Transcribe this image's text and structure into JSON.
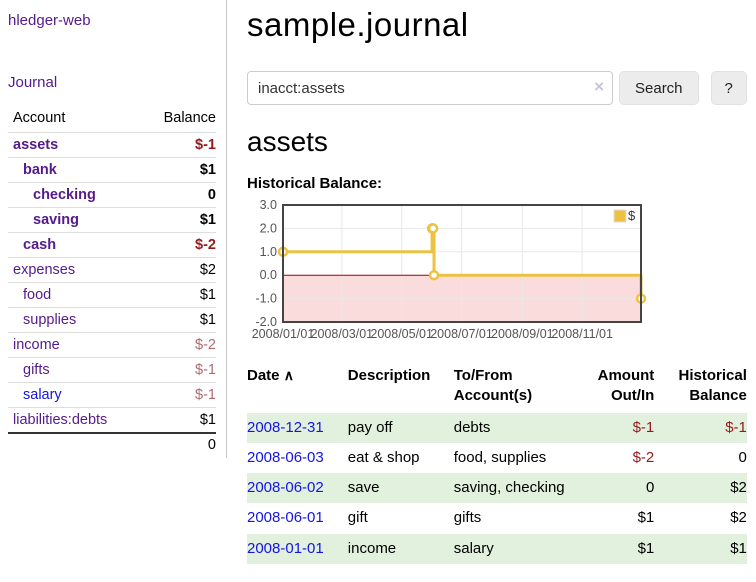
{
  "app": {
    "brand": "hledger-web"
  },
  "sidebar": {
    "journal_link": "Journal",
    "accounts": {
      "col_account": "Account",
      "col_balance": "Balance",
      "rows": [
        {
          "name": "assets",
          "balance": "$-1",
          "depth": 0,
          "bold": true,
          "balance_style": "negative-strong"
        },
        {
          "name": "bank",
          "balance": "$1",
          "depth": 1,
          "bold": true,
          "balance_style": "normal"
        },
        {
          "name": "checking",
          "balance": "0",
          "depth": 2,
          "bold": true,
          "balance_style": "normal"
        },
        {
          "name": "saving",
          "balance": "$1",
          "depth": 2,
          "bold": true,
          "balance_style": "normal"
        },
        {
          "name": "cash",
          "balance": "$-2",
          "depth": 1,
          "bold": true,
          "balance_style": "negative-strong"
        },
        {
          "name": "expenses",
          "balance": "$2",
          "depth": 0,
          "bold": false,
          "balance_style": "normal"
        },
        {
          "name": "food",
          "balance": "$1",
          "depth": 1,
          "bold": false,
          "balance_style": "normal"
        },
        {
          "name": "supplies",
          "balance": "$1",
          "depth": 1,
          "bold": false,
          "balance_style": "normal"
        },
        {
          "name": "income",
          "balance": "$-2",
          "depth": 0,
          "bold": false,
          "balance_style": "negative-soft"
        },
        {
          "name": "gifts",
          "balance": "$-1",
          "depth": 1,
          "bold": false,
          "balance_style": "negative-soft"
        },
        {
          "name": "salary",
          "balance": "$-1",
          "depth": 1,
          "bold": false,
          "balance_style": "negative-soft",
          "link_style": "unvisited"
        },
        {
          "name": "liabilities:debts",
          "balance": "$1",
          "depth": 0,
          "bold": false,
          "balance_style": "normal"
        }
      ],
      "total": "0"
    }
  },
  "main": {
    "title": "sample.journal",
    "search": {
      "value": "inacct:assets",
      "clear_icon": "×",
      "search_button": "Search",
      "help_button": "?"
    },
    "account_heading": "assets",
    "section_label": "Historical Balance:",
    "register": {
      "headers": {
        "date": "Date",
        "sort_indicator": "∧",
        "description": "Description",
        "account": "To/From Account(s)",
        "amount": "Amount Out/In",
        "balance": "Historical Balance"
      },
      "rows": [
        {
          "date": "2008-12-31",
          "description": "pay off",
          "accounts": "debts",
          "amount": "$-1",
          "amount_negative": true,
          "balance": "$-1",
          "balance_negative": true
        },
        {
          "date": "2008-06-03",
          "description": "eat & shop",
          "accounts": "food, supplies",
          "amount": "$-2",
          "amount_negative": true,
          "balance": "0",
          "balance_negative": false
        },
        {
          "date": "2008-06-02",
          "description": "save",
          "accounts": "saving, checking",
          "amount": "0",
          "amount_negative": false,
          "balance": "$2",
          "balance_negative": false
        },
        {
          "date": "2008-06-01",
          "description": "gift",
          "accounts": "gifts",
          "amount": "$1",
          "amount_negative": false,
          "balance": "$2",
          "balance_negative": false
        },
        {
          "date": "2008-01-01",
          "description": "income",
          "accounts": "salary",
          "amount": "$1",
          "amount_negative": false,
          "balance": "$1",
          "balance_negative": false
        }
      ]
    }
  },
  "colors": {
    "link_visited": "#551a8b",
    "link_unvisited": "#1414dd",
    "negative_strong": "#96181c",
    "negative_soft": "#b06a6e",
    "row_stripe_green": "#e2f1de",
    "chart_line": "#edc240",
    "chart_negative_fill": "#fbdcdc",
    "chart_zero_line": "#a00000",
    "chart_grid": "#e8e8e8",
    "chart_border": "#444444",
    "chart_tick_text": "#545454"
  },
  "chart_data": {
    "type": "line",
    "step": true,
    "title": "Historical Balance",
    "legend": [
      {
        "label": "$",
        "color": "#edc240"
      }
    ],
    "legend_position": "top-right",
    "grid": true,
    "negative_region_shaded": true,
    "ylim": [
      -2,
      3
    ],
    "y_tick_values": [
      3,
      2,
      1,
      0,
      -1,
      -2
    ],
    "y_tick_labels": [
      "3.0",
      "2.0",
      "1.0",
      "0.0",
      "-1.0",
      "-2.0"
    ],
    "x_range_days": [
      0,
      365
    ],
    "x_tick_days": [
      0,
      60,
      121,
      182,
      244,
      305
    ],
    "x_tick_labels": [
      "2008/01/01",
      "2008/03/01",
      "2008/05/01",
      "2008/07/01",
      "2008/09/01",
      "2008/11/01"
    ],
    "series": [
      {
        "name": "$",
        "color": "#edc240",
        "points": [
          {
            "date": "2008-01-01",
            "day": 0,
            "value": 1
          },
          {
            "date": "2008-06-01",
            "day": 152,
            "value": 2
          },
          {
            "date": "2008-06-02",
            "day": 153,
            "value": 2
          },
          {
            "date": "2008-06-03",
            "day": 154,
            "value": 0
          },
          {
            "date": "2008-12-31",
            "day": 365,
            "value": -1
          }
        ]
      }
    ]
  }
}
